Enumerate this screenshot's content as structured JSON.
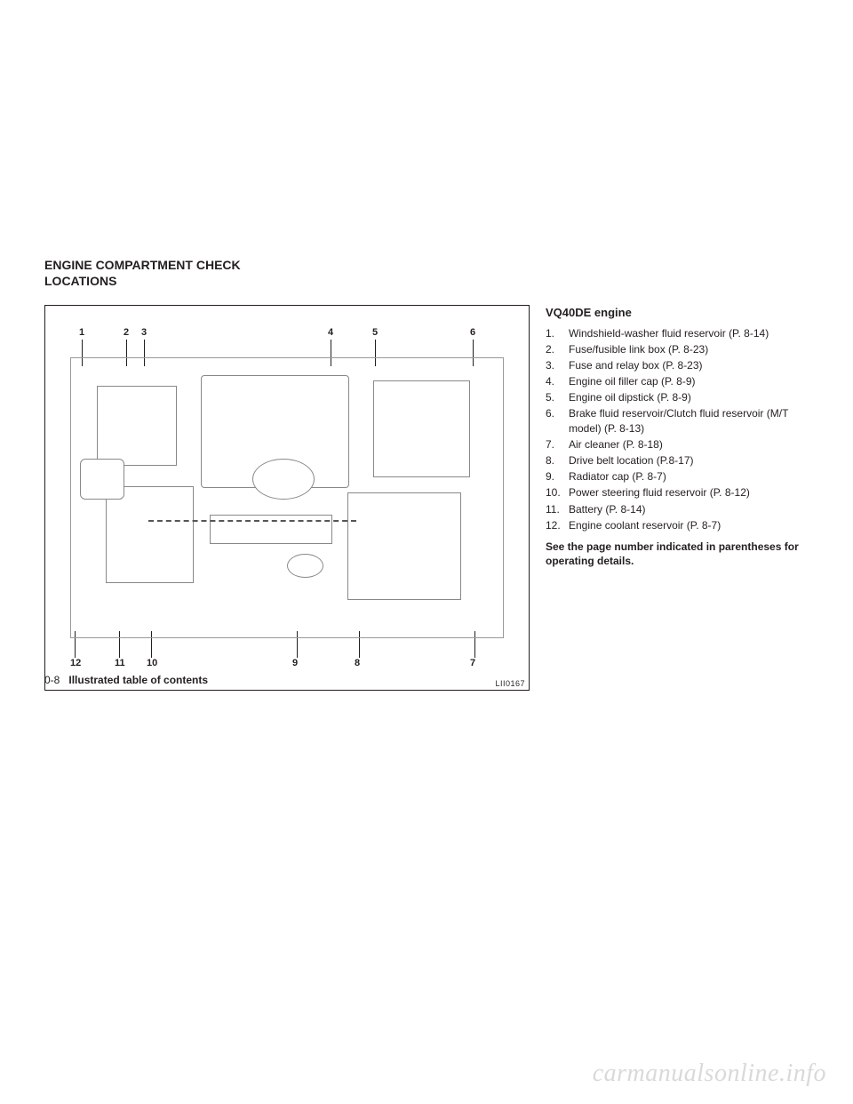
{
  "section_title_l1": "ENGINE COMPARTMENT CHECK",
  "section_title_l2": "LOCATIONS",
  "figure": {
    "code": "LII0167",
    "top_labels": [
      "1",
      "2",
      "3",
      "4",
      "5",
      "6"
    ],
    "bottom_labels": [
      "12",
      "11",
      "10",
      "9",
      "8",
      "7"
    ],
    "top_x": [
      38,
      88,
      108,
      318,
      368,
      478
    ],
    "bottom_x": [
      28,
      78,
      114,
      278,
      348,
      478
    ]
  },
  "engine_title": "VQ40DE engine",
  "items": [
    {
      "n": "1.",
      "t": "Windshield-washer fluid reservoir (P. 8-14)"
    },
    {
      "n": "2.",
      "t": "Fuse/fusible link box (P. 8-23)"
    },
    {
      "n": "3.",
      "t": "Fuse and relay box (P. 8-23)"
    },
    {
      "n": "4.",
      "t": "Engine oil filler cap (P. 8-9)"
    },
    {
      "n": "5.",
      "t": "Engine oil dipstick (P. 8-9)"
    },
    {
      "n": "6.",
      "t": "Brake fluid reservoir/Clutch fluid reservoir (M/T model) (P. 8-13)"
    },
    {
      "n": "7.",
      "t": "Air cleaner (P. 8-18)"
    },
    {
      "n": "8.",
      "t": "Drive belt location (P.8-17)"
    },
    {
      "n": "9.",
      "t": "Radiator cap (P. 8-7)"
    },
    {
      "n": "10.",
      "t": "Power steering fluid reservoir (P. 8-12)"
    },
    {
      "n": "11.",
      "t": "Battery (P. 8-14)"
    },
    {
      "n": "12.",
      "t": "Engine coolant reservoir (P. 8-7)"
    }
  ],
  "note": "See the page number indicated in parentheses for operating details.",
  "footer_page": "0-8",
  "footer_label": "Illustrated table of contents",
  "watermark": "carmanualsonline.info"
}
